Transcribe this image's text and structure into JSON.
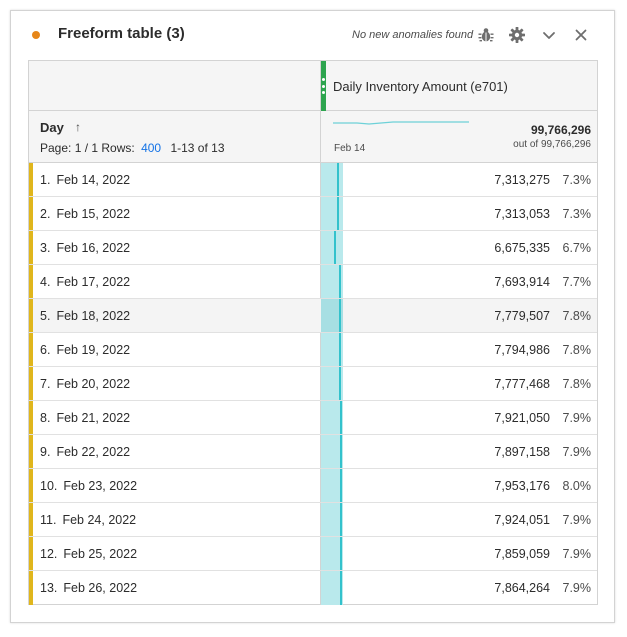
{
  "panel": {
    "title": "Freeform table (3)",
    "anomaly_text": "No new anomalies found",
    "icons": [
      "bug-icon",
      "gear-icon",
      "chevron-down-icon",
      "close-icon"
    ]
  },
  "table": {
    "metric_title": "Daily Inventory Amount (e701)",
    "dimension_label": "Day",
    "page_label": "Page: 1 / 1",
    "rows_label": "Rows:",
    "rows_value": "400",
    "range_label": "1-13 of 13",
    "sparkline_label": "Feb 14",
    "total": "99,766,296",
    "out_of": "out of 99,766,296",
    "bar_color": "#b9e9ec",
    "line_color": "#33c2cc",
    "row_marker_color": "#e0b61c",
    "rows": [
      {
        "num": "1.",
        "day": "Feb 14, 2022",
        "value": "7,313,275",
        "pct": "7.3%",
        "share": 0.073
      },
      {
        "num": "2.",
        "day": "Feb 15, 2022",
        "value": "7,313,053",
        "pct": "7.3%",
        "share": 0.073
      },
      {
        "num": "3.",
        "day": "Feb 16, 2022",
        "value": "6,675,335",
        "pct": "6.7%",
        "share": 0.067
      },
      {
        "num": "4.",
        "day": "Feb 17, 2022",
        "value": "7,693,914",
        "pct": "7.7%",
        "share": 0.077
      },
      {
        "num": "5.",
        "day": "Feb 18, 2022",
        "value": "7,779,507",
        "pct": "7.8%",
        "share": 0.078
      },
      {
        "num": "6.",
        "day": "Feb 19, 2022",
        "value": "7,794,986",
        "pct": "7.8%",
        "share": 0.078
      },
      {
        "num": "7.",
        "day": "Feb 20, 2022",
        "value": "7,777,468",
        "pct": "7.8%",
        "share": 0.078
      },
      {
        "num": "8.",
        "day": "Feb 21, 2022",
        "value": "7,921,050",
        "pct": "7.9%",
        "share": 0.079
      },
      {
        "num": "9.",
        "day": "Feb 22, 2022",
        "value": "7,897,158",
        "pct": "7.9%",
        "share": 0.079
      },
      {
        "num": "10.",
        "day": "Feb 23, 2022",
        "value": "7,953,176",
        "pct": "8.0%",
        "share": 0.08
      },
      {
        "num": "11.",
        "day": "Feb 24, 2022",
        "value": "7,924,051",
        "pct": "7.9%",
        "share": 0.079
      },
      {
        "num": "12.",
        "day": "Feb 25, 2022",
        "value": "7,859,059",
        "pct": "7.9%",
        "share": 0.079
      },
      {
        "num": "13.",
        "day": "Feb 26, 2022",
        "value": "7,864,264",
        "pct": "7.9%",
        "share": 0.079
      }
    ]
  }
}
